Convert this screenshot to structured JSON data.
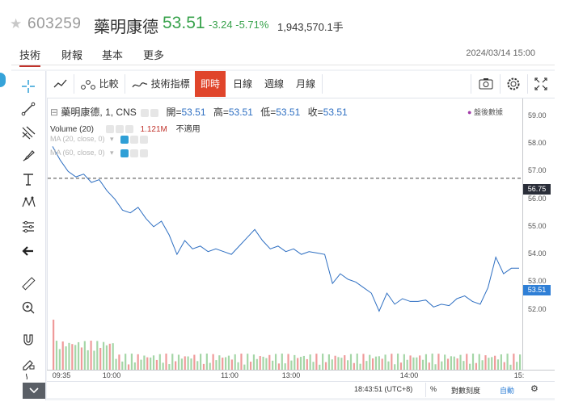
{
  "header": {
    "code": "603259",
    "name": "藥明康德",
    "price": "53.51",
    "change": "-3.24 -5.71%",
    "volume": "1,943,570.1手"
  },
  "tabs": [
    {
      "label": "技術",
      "active": true
    },
    {
      "label": "財報",
      "active": false
    },
    {
      "label": "基本",
      "active": false
    },
    {
      "label": "更多",
      "active": false
    }
  ],
  "timestamp": "2024/03/14 15:00",
  "toolbar": {
    "compare": "比較",
    "indicators": "技術指標",
    "intraday": "即時",
    "daily": "日線",
    "weekly": "週線",
    "monthly": "月線"
  },
  "legend": {
    "symbol": "藥明康德, 1, CNS",
    "open_label": "開=",
    "open": "53.51",
    "high_label": "高=",
    "high": "53.51",
    "low_label": "低=",
    "low": "53.51",
    "close_label": "收=",
    "close": "53.51",
    "after_hours": "盤後數據",
    "volume_label": "Volume (20)",
    "volume_value": "1.121M",
    "na": "不適用",
    "ma20": "MA (20, close, 0)",
    "ma60": "MA (60, close, 0)"
  },
  "chart_data": {
    "type": "line",
    "x_ticks": [
      "09:35",
      "10:00",
      "11:00",
      "13:00",
      "14:00",
      "15:"
    ],
    "y_ticks": [
      "59.00",
      "58.00",
      "57.00",
      "56.00",
      "55.00",
      "54.00",
      "53.00",
      "52.00"
    ],
    "reference_line": "56.75",
    "last_price": "53.51",
    "ylim": [
      51.0,
      59.4
    ],
    "series": [
      {
        "values": [
          57.9,
          57.4,
          57.0,
          56.8,
          56.9,
          56.6,
          56.7,
          56.3,
          56.0,
          55.6,
          55.5,
          55.7,
          55.3,
          55.0,
          55.2,
          54.7,
          54.0,
          54.5,
          54.2,
          54.3,
          54.1,
          54.2,
          54.1,
          54.0,
          54.3,
          54.6,
          54.9,
          54.5,
          54.2,
          54.3,
          54.1,
          54.2,
          54.0,
          54.1,
          54.05,
          54.0,
          52.95,
          53.3,
          53.1,
          53.0,
          52.8,
          52.6,
          51.95,
          52.6,
          52.2,
          52.4,
          52.3,
          52.3,
          52.35,
          52.1,
          52.2,
          52.15,
          52.4,
          52.5,
          52.3,
          52.2,
          52.8,
          53.9,
          53.3,
          53.5,
          53.5
        ]
      }
    ]
  },
  "footer": {
    "clock": "18:43:51 (UTC+8)",
    "percent": "%",
    "log": "對數刻度",
    "auto": "自動"
  },
  "colors": {
    "down": "#37a24b",
    "active_tab": "#c0322b",
    "intraday_btn": "#e0452b",
    "line": "#2e6fc2",
    "vol_up": "#ef9a9a",
    "vol_down": "#a5d6a7"
  }
}
